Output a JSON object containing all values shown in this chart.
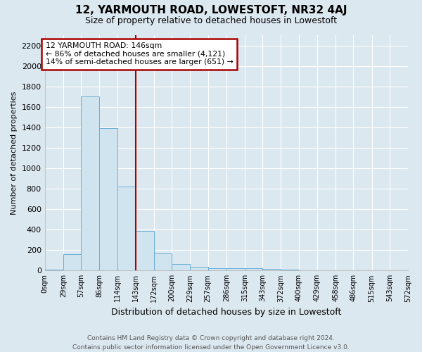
{
  "title": "12, YARMOUTH ROAD, LOWESTOFT, NR32 4AJ",
  "subtitle": "Size of property relative to detached houses in Lowestoft",
  "xlabel": "Distribution of detached houses by size in Lowestoft",
  "ylabel": "Number of detached properties",
  "bins": [
    0,
    29,
    57,
    86,
    114,
    143,
    172,
    200,
    229,
    257,
    286,
    315,
    343,
    372,
    400,
    429,
    458,
    486,
    515,
    543,
    572
  ],
  "counts": [
    10,
    160,
    1700,
    1390,
    820,
    390,
    165,
    65,
    35,
    25,
    20,
    20,
    15,
    10,
    5,
    3,
    2,
    1,
    1,
    1
  ],
  "bar_facecolor": "#d0e4f0",
  "bar_edgecolor": "#6aaed6",
  "vline_x": 143,
  "vline_color": "#aa0000",
  "annotation_line1": "12 YARMOUTH ROAD: 146sqm",
  "annotation_line2": "← 86% of detached houses are smaller (4,121)",
  "annotation_line3": "14% of semi-detached houses are larger (651) →",
  "annotation_box_edgecolor": "#aa0000",
  "annotation_box_facecolor": "white",
  "ylim": [
    0,
    2300
  ],
  "yticks": [
    0,
    200,
    400,
    600,
    800,
    1000,
    1200,
    1400,
    1600,
    1800,
    2000,
    2200
  ],
  "footer": "Contains HM Land Registry data © Crown copyright and database right 2024.\nContains public sector information licensed under the Open Government Licence v3.0.",
  "bg_color": "#dce8f0",
  "plot_bg_color": "#dce8f0"
}
